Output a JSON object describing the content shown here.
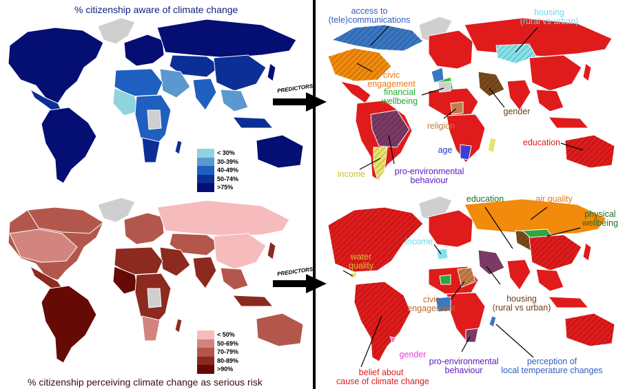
{
  "colors": {
    "aware_lt30": "#8fd3dc",
    "aware_30_39": "#5b98cf",
    "aware_40_49": "#1f5fbf",
    "aware_50_74": "#0c2f95",
    "aware_gt75": "#040e73",
    "risk_lt50": "#f6bcbd",
    "risk_50_69": "#d1857e",
    "risk_70_79": "#b3574c",
    "risk_80_89": "#8c2a20",
    "risk_gt90": "#650a05",
    "education": "#e01b1b",
    "communications": "#3a77c2",
    "civic": "#f28a0c",
    "financial": "#2fc43a",
    "religion": "#c57d46",
    "gender_top": "#7a4a1d",
    "housing": "#86e2ea",
    "age": "#3a3fd6",
    "income": "#e8e36a",
    "proenv": "#7b3a64",
    "nodata": "#cfcfcf"
  },
  "top_left": {
    "title": "% citizenship aware of climate change",
    "legend": [
      {
        "label": "< 30%",
        "color": "#8fd3dc"
      },
      {
        "label": "30-39%",
        "color": "#5b98cf"
      },
      {
        "label": "40-49%",
        "color": "#1f5fbf"
      },
      {
        "label": "50-74%",
        "color": "#0c2f95"
      },
      {
        "label": ">75%",
        "color": "#040e73"
      }
    ]
  },
  "bottom_left": {
    "title": "% citizenship perceiving climate change as serious risk",
    "legend": [
      {
        "label": "< 50%",
        "color": "#f6bcbd"
      },
      {
        "label": "50-69%",
        "color": "#d1857e"
      },
      {
        "label": "70-79%",
        "color": "#b3574c"
      },
      {
        "label": "80-89%",
        "color": "#8c2a20"
      },
      {
        "label": ">90%",
        "color": "#650a05"
      }
    ]
  },
  "arrows": {
    "top_label": "PREDICTORS",
    "bottom_label": "PREDICTORS"
  },
  "top_right": {
    "labels": {
      "communications": "access to\n(tele)communications",
      "housing": "housing\n(rural vs urban)",
      "civic": "civic\nengagement",
      "financial": "financial\nwellbeing",
      "gender": "gender",
      "religion": "religion",
      "education": "education",
      "age": "age",
      "income": "income",
      "proenv": "pro-environmental\nbehaviour"
    }
  },
  "bottom_right": {
    "labels": {
      "education": "education",
      "air_quality": "air quality",
      "physical": "physical\nwellbeing",
      "income": "income",
      "water": "water\nquality",
      "civic": "civic\nengagement",
      "housing": "housing\n(rural vs urban)",
      "gender": "gender",
      "proenv": "pro-environmental\nbehaviour",
      "perception": "perception of\nlocal temperature changes",
      "belief": "belief about\ncause of climate change"
    }
  }
}
